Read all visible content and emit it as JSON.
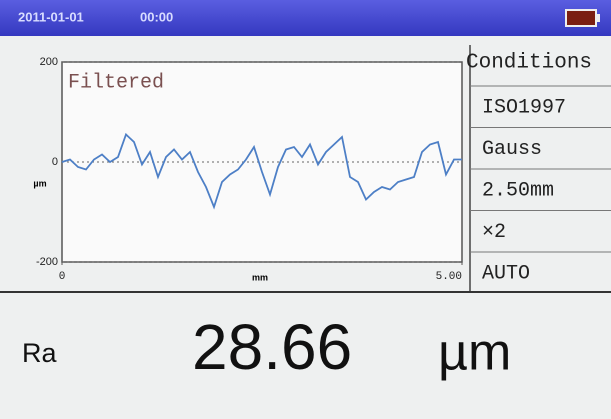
{
  "header": {
    "date": "2011-01-01",
    "time": "00:00"
  },
  "chart_data": {
    "type": "line",
    "annotation": "Filtered",
    "xlabel": "mm",
    "ylabel": "µm",
    "x": [
      0.0,
      0.1,
      0.2,
      0.3,
      0.4,
      0.5,
      0.6,
      0.7,
      0.8,
      0.9,
      1.0,
      1.1,
      1.2,
      1.3,
      1.4,
      1.5,
      1.6,
      1.7,
      1.8,
      1.9,
      2.0,
      2.1,
      2.2,
      2.3,
      2.4,
      2.5,
      2.6,
      2.7,
      2.8,
      2.9,
      3.0,
      3.1,
      3.2,
      3.3,
      3.4,
      3.5,
      3.6,
      3.7,
      3.8,
      3.9,
      4.0,
      4.1,
      4.2,
      4.3,
      4.4,
      4.5,
      4.6,
      4.7,
      4.8,
      4.9,
      5.0
    ],
    "series": [
      {
        "color": "#4d7fc6",
        "values": [
          0,
          5,
          -10,
          -15,
          5,
          15,
          0,
          10,
          55,
          40,
          -5,
          20,
          -30,
          10,
          25,
          5,
          20,
          -20,
          -50,
          -90,
          -40,
          -25,
          -15,
          5,
          30,
          -20,
          -65,
          -10,
          25,
          30,
          10,
          35,
          -5,
          20,
          35,
          50,
          -30,
          -40,
          -75,
          -60,
          -50,
          -55,
          -40,
          -35,
          -30,
          20,
          35,
          40,
          -25,
          5,
          5
        ]
      }
    ],
    "xlim": [
      0,
      5
    ],
    "xticks": [
      0,
      {
        "value": 5,
        "label": "5.00"
      }
    ],
    "ylim": [
      -200,
      200
    ],
    "yticks": [
      -200,
      0,
      200
    ],
    "grid": true
  },
  "conditions": {
    "title": "Conditions",
    "items": [
      "ISO1997",
      "Gauss",
      "2.50mm",
      "×2",
      "AUTO"
    ]
  },
  "result": {
    "parameter": "Ra",
    "value": "28.66",
    "unit": "µm"
  }
}
